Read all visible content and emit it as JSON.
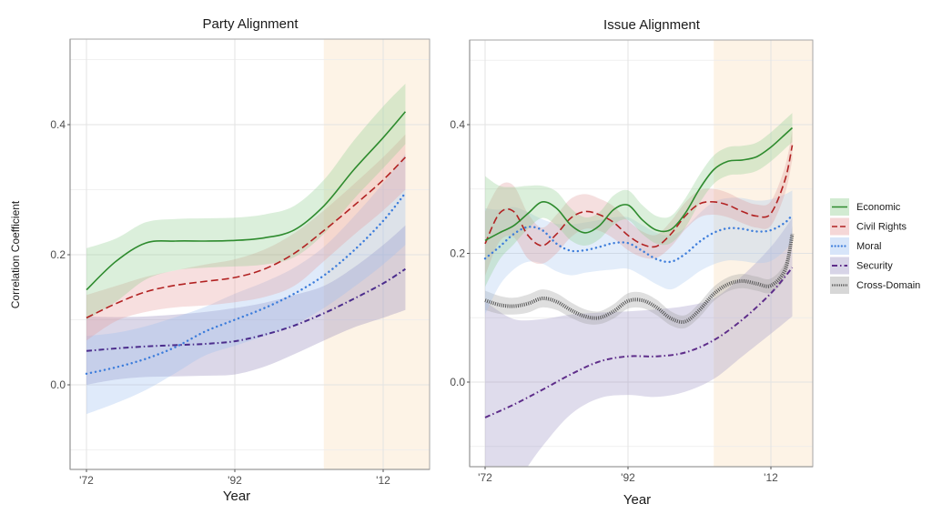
{
  "chart_data": [
    {
      "type": "line",
      "title": "Party Alignment",
      "xlabel": "Year",
      "ylabel": "Correlation Coefficient",
      "xlim": [
        1970,
        2020
      ],
      "ylim": [
        -0.13,
        0.53
      ],
      "xticks": [
        1972,
        1992,
        2012
      ],
      "xtick_labels": [
        "'72",
        "'92",
        "'12"
      ],
      "yticks": [
        0.0,
        0.2,
        0.4
      ],
      "ytick_labels": [
        "0.0",
        "0.2",
        "0.4"
      ],
      "grid": true,
      "highlight_region": {
        "from": 2004,
        "to": 2020,
        "color": "#fdf3e6"
      },
      "series": [
        {
          "name": "Security",
          "color": "#4b2c8c",
          "dash": "dashdot",
          "band_color": "#8e83b8",
          "x": [
            1972,
            1976,
            1980,
            1984,
            1988,
            1992,
            1996,
            2000,
            2004,
            2008,
            2012,
            2015
          ],
          "values": [
            0.052,
            0.056,
            0.059,
            0.061,
            0.063,
            0.067,
            0.077,
            0.091,
            0.11,
            0.132,
            0.156,
            0.178
          ],
          "lower": [
            0.0,
            0.008,
            0.012,
            0.013,
            0.014,
            0.016,
            0.028,
            0.047,
            0.068,
            0.088,
            0.103,
            0.115
          ],
          "upper": [
            0.105,
            0.104,
            0.105,
            0.108,
            0.112,
            0.118,
            0.126,
            0.138,
            0.152,
            0.18,
            0.215,
            0.245
          ]
        },
        {
          "name": "Moral",
          "color": "#3d7ddb",
          "dash": "dotted",
          "band_color": "#9bbfef",
          "x": [
            1972,
            1976,
            1980,
            1984,
            1988,
            1992,
            1996,
            2000,
            2004,
            2008,
            2012,
            2015
          ],
          "values": [
            0.017,
            0.027,
            0.04,
            0.058,
            0.082,
            0.1,
            0.118,
            0.14,
            0.168,
            0.206,
            0.252,
            0.295
          ],
          "lower": [
            -0.045,
            -0.028,
            -0.008,
            0.018,
            0.045,
            0.06,
            0.075,
            0.092,
            0.118,
            0.15,
            0.185,
            0.215
          ],
          "upper": [
            0.075,
            0.08,
            0.09,
            0.104,
            0.12,
            0.14,
            0.158,
            0.18,
            0.212,
            0.258,
            0.31,
            0.355
          ]
        },
        {
          "name": "Civil Rights",
          "color": "#b22222",
          "dash": "dashed",
          "band_color": "#e59a9a",
          "x": [
            1972,
            1976,
            1980,
            1984,
            1988,
            1992,
            1996,
            2000,
            2004,
            2008,
            2012,
            2015
          ],
          "values": [
            0.103,
            0.125,
            0.143,
            0.153,
            0.159,
            0.165,
            0.178,
            0.202,
            0.237,
            0.275,
            0.315,
            0.35
          ],
          "lower": [
            0.068,
            0.098,
            0.112,
            0.119,
            0.122,
            0.127,
            0.135,
            0.152,
            0.19,
            0.23,
            0.268,
            0.3
          ],
          "upper": [
            0.138,
            0.152,
            0.166,
            0.176,
            0.185,
            0.193,
            0.208,
            0.233,
            0.268,
            0.308,
            0.35,
            0.385
          ]
        },
        {
          "name": "Economic",
          "color": "#2e8b2e",
          "dash": "solid",
          "band_color": "#8fcc8f",
          "x": [
            1972,
            1976,
            1980,
            1984,
            1988,
            1992,
            1996,
            2000,
            2004,
            2008,
            2012,
            2015
          ],
          "values": [
            0.146,
            0.19,
            0.218,
            0.221,
            0.221,
            0.222,
            0.226,
            0.238,
            0.275,
            0.33,
            0.38,
            0.42
          ],
          "lower": [
            0.1,
            0.128,
            0.162,
            0.176,
            0.18,
            0.182,
            0.185,
            0.196,
            0.232,
            0.285,
            0.333,
            0.37
          ],
          "upper": [
            0.21,
            0.225,
            0.25,
            0.255,
            0.256,
            0.257,
            0.262,
            0.275,
            0.315,
            0.375,
            0.428,
            0.463
          ]
        }
      ]
    },
    {
      "type": "line",
      "title": "Issue Alignment",
      "xlabel": "Year",
      "ylabel": "",
      "xlim": [
        1970,
        2020
      ],
      "ylim": [
        -0.13,
        0.53
      ],
      "xticks": [
        1972,
        1992,
        2012
      ],
      "xtick_labels": [
        "'72",
        "'92",
        "'12"
      ],
      "yticks": [
        0.0,
        0.2,
        0.4
      ],
      "ytick_labels": [
        "0.0",
        "0.2",
        "0.4"
      ],
      "grid": true,
      "highlight_region": {
        "from": 2004,
        "to": 2020,
        "color": "#fdf3e6"
      },
      "series": [
        {
          "name": "Security",
          "color": "#5e2d8a",
          "dash": "dashdot",
          "band_color": "#9a93c4",
          "x": [
            1972,
            1976,
            1980,
            1984,
            1988,
            1992,
            1996,
            2000,
            2004,
            2008,
            2012,
            2015
          ],
          "values": [
            -0.055,
            -0.035,
            -0.012,
            0.012,
            0.032,
            0.04,
            0.04,
            0.046,
            0.065,
            0.097,
            0.138,
            0.178
          ],
          "lower": [
            -0.2,
            -0.16,
            -0.1,
            -0.05,
            -0.025,
            -0.02,
            -0.023,
            -0.015,
            0.005,
            0.04,
            0.075,
            0.102
          ],
          "upper": [
            0.125,
            0.098,
            0.098,
            0.105,
            0.108,
            0.11,
            0.113,
            0.118,
            0.13,
            0.165,
            0.21,
            0.255
          ]
        },
        {
          "name": "Cross-Domain",
          "color": "#555555",
          "dash": "dotted-thick",
          "band_color": "#9a9a9a",
          "x": [
            1972,
            1974,
            1976,
            1978,
            1980,
            1982,
            1984,
            1986,
            1988,
            1990,
            1992,
            1994,
            1996,
            1998,
            2000,
            2002,
            2004,
            2006,
            2008,
            2010,
            2012,
            2014,
            2015
          ],
          "values": [
            0.127,
            0.12,
            0.118,
            0.122,
            0.13,
            0.125,
            0.112,
            0.102,
            0.1,
            0.11,
            0.126,
            0.127,
            0.116,
            0.099,
            0.094,
            0.112,
            0.137,
            0.152,
            0.157,
            0.153,
            0.15,
            0.175,
            0.23
          ],
          "lower": [
            0.112,
            0.106,
            0.105,
            0.108,
            0.116,
            0.112,
            0.1,
            0.091,
            0.09,
            0.099,
            0.114,
            0.115,
            0.104,
            0.088,
            0.084,
            0.101,
            0.126,
            0.141,
            0.146,
            0.142,
            0.139,
            0.163,
            0.217
          ],
          "upper": [
            0.142,
            0.134,
            0.131,
            0.136,
            0.144,
            0.138,
            0.124,
            0.113,
            0.11,
            0.121,
            0.138,
            0.139,
            0.128,
            0.11,
            0.104,
            0.123,
            0.148,
            0.163,
            0.168,
            0.164,
            0.161,
            0.187,
            0.243
          ]
        },
        {
          "name": "Moral",
          "color": "#3d7ddb",
          "dash": "dotted",
          "band_color": "#a7c8f0",
          "x": [
            1972,
            1974,
            1976,
            1978,
            1980,
            1982,
            1984,
            1986,
            1988,
            1990,
            1992,
            1994,
            1996,
            1998,
            2000,
            2002,
            2004,
            2006,
            2008,
            2010,
            2012,
            2014,
            2015
          ],
          "values": [
            0.192,
            0.21,
            0.23,
            0.241,
            0.236,
            0.215,
            0.204,
            0.205,
            0.21,
            0.216,
            0.216,
            0.204,
            0.191,
            0.187,
            0.199,
            0.218,
            0.232,
            0.239,
            0.238,
            0.234,
            0.236,
            0.248,
            0.26
          ],
          "lower": [
            0.105,
            0.15,
            0.175,
            0.187,
            0.184,
            0.172,
            0.166,
            0.17,
            0.173,
            0.175,
            0.176,
            0.165,
            0.152,
            0.144,
            0.156,
            0.172,
            0.183,
            0.189,
            0.188,
            0.185,
            0.188,
            0.205,
            0.22
          ],
          "upper": [
            0.27,
            0.268,
            0.272,
            0.264,
            0.253,
            0.246,
            0.245,
            0.248,
            0.252,
            0.256,
            0.256,
            0.244,
            0.232,
            0.228,
            0.24,
            0.262,
            0.28,
            0.286,
            0.286,
            0.282,
            0.284,
            0.292,
            0.298
          ]
        },
        {
          "name": "Civil Rights",
          "color": "#b22222",
          "dash": "dashed",
          "band_color": "#e09a9a",
          "x": [
            1972,
            1974,
            1976,
            1978,
            1980,
            1982,
            1984,
            1986,
            1988,
            1990,
            1992,
            1994,
            1996,
            1998,
            2000,
            2002,
            2004,
            2006,
            2008,
            2010,
            2012,
            2014,
            2015
          ],
          "values": [
            0.215,
            0.262,
            0.265,
            0.228,
            0.212,
            0.23,
            0.255,
            0.265,
            0.26,
            0.248,
            0.228,
            0.214,
            0.211,
            0.23,
            0.258,
            0.277,
            0.28,
            0.275,
            0.265,
            0.258,
            0.262,
            0.315,
            0.368
          ],
          "lower": [
            0.165,
            0.218,
            0.225,
            0.192,
            0.184,
            0.2,
            0.225,
            0.238,
            0.235,
            0.223,
            0.205,
            0.194,
            0.193,
            0.21,
            0.237,
            0.256,
            0.26,
            0.256,
            0.247,
            0.24,
            0.243,
            0.294,
            0.345
          ],
          "upper": [
            0.265,
            0.305,
            0.305,
            0.262,
            0.24,
            0.26,
            0.285,
            0.292,
            0.285,
            0.273,
            0.251,
            0.234,
            0.229,
            0.25,
            0.279,
            0.298,
            0.3,
            0.294,
            0.283,
            0.276,
            0.281,
            0.336,
            0.391
          ]
        },
        {
          "name": "Economic",
          "color": "#2e8b2e",
          "dash": "solid",
          "band_color": "#8fcc8f",
          "x": [
            1972,
            1974,
            1976,
            1978,
            1980,
            1982,
            1984,
            1986,
            1988,
            1990,
            1992,
            1994,
            1996,
            1998,
            2000,
            2002,
            2004,
            2006,
            2008,
            2010,
            2012,
            2014,
            2015
          ],
          "values": [
            0.22,
            0.232,
            0.243,
            0.262,
            0.28,
            0.27,
            0.244,
            0.232,
            0.243,
            0.268,
            0.275,
            0.252,
            0.236,
            0.237,
            0.262,
            0.3,
            0.33,
            0.343,
            0.345,
            0.35,
            0.365,
            0.385,
            0.395
          ],
          "lower": [
            0.148,
            0.19,
            0.214,
            0.238,
            0.255,
            0.243,
            0.22,
            0.212,
            0.222,
            0.245,
            0.252,
            0.23,
            0.215,
            0.216,
            0.24,
            0.278,
            0.308,
            0.321,
            0.323,
            0.328,
            0.343,
            0.363,
            0.373
          ],
          "upper": [
            0.32,
            0.305,
            0.303,
            0.305,
            0.305,
            0.296,
            0.27,
            0.256,
            0.264,
            0.29,
            0.298,
            0.275,
            0.258,
            0.258,
            0.285,
            0.322,
            0.352,
            0.365,
            0.367,
            0.372,
            0.388,
            0.408,
            0.418
          ]
        }
      ]
    }
  ],
  "legend": {
    "position": "right",
    "items": [
      {
        "name": "Economic",
        "color": "#2e8b2e",
        "dash": "solid",
        "band_color": "#8fcc8f"
      },
      {
        "name": "Civil Rights",
        "color": "#b22222",
        "dash": "dashed",
        "band_color": "#e59a9a"
      },
      {
        "name": "Moral",
        "color": "#3d7ddb",
        "dash": "dotted",
        "band_color": "#9bbfef"
      },
      {
        "name": "Security",
        "color": "#5e2d8a",
        "dash": "dashdot",
        "band_color": "#9a93c4"
      },
      {
        "name": "Cross-Domain",
        "color": "#555555",
        "dash": "dotted-thick",
        "band_color": "#9a9a9a"
      }
    ]
  }
}
